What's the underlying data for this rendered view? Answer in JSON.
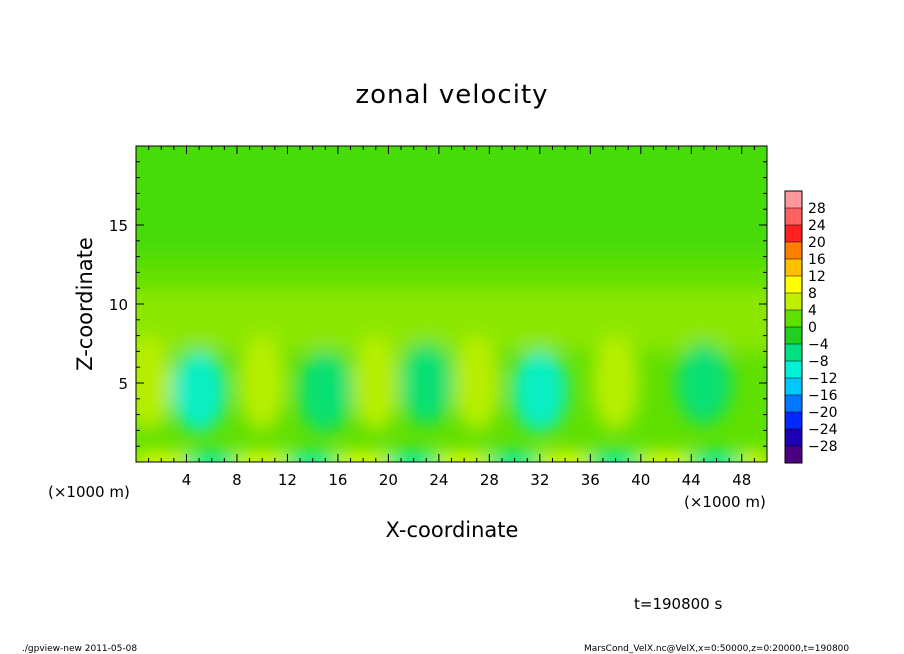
{
  "chart_data": {
    "type": "heatmap",
    "title": "zonal velocity",
    "xlabel": "X-coordinate",
    "ylabel": "Z-coordinate",
    "x_unit_label": "(×1000 m)",
    "x_unit_label_right": "(×1000 m)",
    "xlim": [
      0,
      50
    ],
    "ylim": [
      0,
      20
    ],
    "x_ticks": [
      4,
      8,
      12,
      16,
      20,
      24,
      28,
      32,
      36,
      40,
      44,
      48
    ],
    "x_tick_labels": [
      "4",
      "8",
      "12",
      "16",
      "20",
      "24",
      "28",
      "32",
      "36",
      "40",
      "44",
      "48"
    ],
    "y_ticks": [
      5,
      10,
      15
    ],
    "y_tick_labels": [
      "5",
      "10",
      "15"
    ],
    "colorbar": {
      "levels": [
        -28,
        -24,
        -20,
        -16,
        -12,
        -8,
        -4,
        0,
        4,
        8,
        12,
        16,
        20,
        24,
        28
      ],
      "labels": [
        "28",
        "24",
        "20",
        "16",
        "12",
        "8",
        "4",
        "0",
        "−4",
        "−8",
        "−12",
        "−16",
        "−20",
        "−24",
        "−28"
      ],
      "colors": [
        "#4b0082",
        "#1e00b4",
        "#0028ff",
        "#0078ff",
        "#00c8ff",
        "#00f0d8",
        "#00e080",
        "#20d020",
        "#60e000",
        "#c0f000",
        "#ffff00",
        "#ffc000",
        "#ff8000",
        "#ff2020",
        "#ff6060",
        "#ff9898"
      ]
    },
    "field_features": {
      "background_value": 2,
      "low_cells_negative": [
        {
          "x": 5,
          "z": 4.5,
          "value": -9
        },
        {
          "x": 15,
          "z": 4.5,
          "value": -7
        },
        {
          "x": 23,
          "z": 5,
          "value": -6
        },
        {
          "x": 32,
          "z": 4.5,
          "value": -12
        },
        {
          "x": 45,
          "z": 5,
          "value": -6
        }
      ],
      "low_cells_positive": [
        {
          "x": 1,
          "z": 5,
          "value": 5
        },
        {
          "x": 10,
          "z": 5,
          "value": 5
        },
        {
          "x": 19,
          "z": 5,
          "value": 5
        },
        {
          "x": 27,
          "z": 5,
          "value": 6
        },
        {
          "x": 38,
          "z": 5,
          "value": 5
        }
      ],
      "shear_band": {
        "z_low": 7,
        "z_high": 11,
        "value": 5
      },
      "upper_value": -1
    },
    "time_label": "t=190800 s"
  },
  "footer": {
    "left": "./gpview-new  2011-05-08",
    "right": "MarsCond_VelX.nc@VelX,x=0:50000,z=0:20000,t=190800"
  }
}
